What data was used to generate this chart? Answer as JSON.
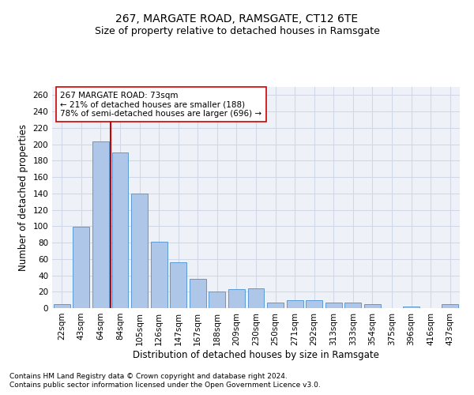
{
  "title": "267, MARGATE ROAD, RAMSGATE, CT12 6TE",
  "subtitle": "Size of property relative to detached houses in Ramsgate",
  "xlabel": "Distribution of detached houses by size in Ramsgate",
  "ylabel": "Number of detached properties",
  "categories": [
    "22sqm",
    "43sqm",
    "64sqm",
    "84sqm",
    "105sqm",
    "126sqm",
    "147sqm",
    "167sqm",
    "188sqm",
    "209sqm",
    "230sqm",
    "250sqm",
    "271sqm",
    "292sqm",
    "313sqm",
    "333sqm",
    "354sqm",
    "375sqm",
    "396sqm",
    "416sqm",
    "437sqm"
  ],
  "values": [
    5,
    99,
    203,
    190,
    140,
    81,
    56,
    36,
    20,
    23,
    24,
    7,
    10,
    10,
    7,
    7,
    5,
    0,
    2,
    0,
    5
  ],
  "bar_color": "#aec6e8",
  "bar_edge_color": "#5b9bd5",
  "vline_color": "#cc0000",
  "annotation_text": "267 MARGATE ROAD: 73sqm\n← 21% of detached houses are smaller (188)\n78% of semi-detached houses are larger (696) →",
  "annotation_box_color": "#ffffff",
  "annotation_box_edge": "#cc0000",
  "ylim": [
    0,
    270
  ],
  "yticks": [
    0,
    20,
    40,
    60,
    80,
    100,
    120,
    140,
    160,
    180,
    200,
    220,
    240,
    260
  ],
  "grid_color": "#d0d8e8",
  "bg_color": "#eef2f8",
  "footer1": "Contains HM Land Registry data © Crown copyright and database right 2024.",
  "footer2": "Contains public sector information licensed under the Open Government Licence v3.0.",
  "title_fontsize": 10,
  "subtitle_fontsize": 9,
  "axis_label_fontsize": 8.5,
  "tick_fontsize": 7.5,
  "annotation_fontsize": 7.5,
  "footer_fontsize": 6.5
}
